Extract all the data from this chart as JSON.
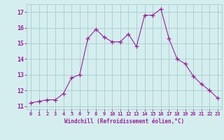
{
  "x": [
    0,
    1,
    2,
    3,
    4,
    5,
    6,
    7,
    8,
    9,
    10,
    11,
    12,
    13,
    14,
    15,
    16,
    17,
    18,
    19,
    20,
    21,
    22,
    23
  ],
  "y": [
    11.2,
    11.3,
    11.4,
    11.4,
    11.8,
    12.8,
    13.0,
    15.3,
    15.9,
    15.4,
    15.1,
    15.1,
    15.6,
    14.8,
    16.8,
    16.8,
    17.2,
    15.3,
    14.0,
    13.7,
    12.9,
    12.4,
    12.0,
    11.5
  ],
  "line_color": "#9b1f9b",
  "marker": "+",
  "bg_color": "#d4eeee",
  "grid_color": "#aacccc",
  "xlabel": "Windchill (Refroidissement éolien,°C)",
  "xlabel_color": "#9b1f9b",
  "tick_color": "#9b1f9b",
  "ylim": [
    10.8,
    17.5
  ],
  "xlim": [
    -0.5,
    23.5
  ],
  "yticks": [
    11,
    12,
    13,
    14,
    15,
    16,
    17
  ],
  "xticks": [
    0,
    1,
    2,
    3,
    4,
    5,
    6,
    7,
    8,
    9,
    10,
    11,
    12,
    13,
    14,
    15,
    16,
    17,
    18,
    19,
    20,
    21,
    22,
    23
  ],
  "xtick_labels": [
    "0",
    "1",
    "2",
    "3",
    "4",
    "5",
    "6",
    "7",
    "8",
    "9",
    "10",
    "11",
    "12",
    "13",
    "14",
    "15",
    "16",
    "17",
    "18",
    "19",
    "20",
    "21",
    "22",
    "23"
  ]
}
